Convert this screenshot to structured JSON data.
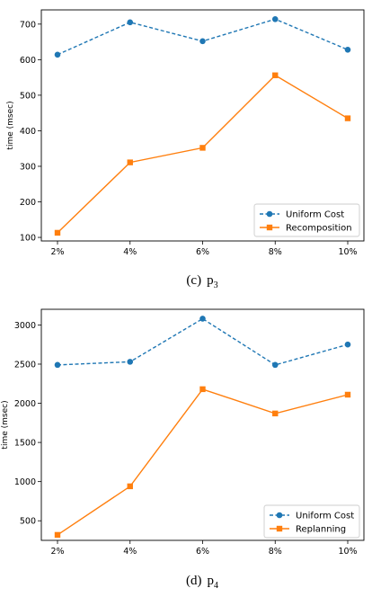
{
  "chart_data": [
    {
      "type": "line",
      "categories": [
        "2%",
        "4%",
        "6%",
        "8%",
        "10%"
      ],
      "ylabel": "time (msec)",
      "ylim": [
        90,
        740
      ],
      "yticks": [
        100,
        200,
        300,
        400,
        500,
        600,
        700
      ],
      "legend_position": "lower-right",
      "caption": {
        "letter": "(c)",
        "name": "p",
        "sub": "3"
      },
      "series": [
        {
          "name": "Uniform Cost",
          "values": [
            614,
            705,
            652,
            714,
            628
          ],
          "color": "#1f77b4",
          "style": "dashed",
          "marker": "circle"
        },
        {
          "name": "Recomposition",
          "values": [
            113,
            311,
            352,
            556,
            435
          ],
          "color": "#ff7f0e",
          "style": "solid",
          "marker": "square"
        }
      ]
    },
    {
      "type": "line",
      "categories": [
        "2%",
        "4%",
        "6%",
        "8%",
        "10%"
      ],
      "ylabel": "time (msec)",
      "ylim": [
        250,
        3200
      ],
      "yticks": [
        500,
        1000,
        1500,
        2000,
        2500,
        3000
      ],
      "legend_position": "lower-right",
      "caption": {
        "letter": "(d)",
        "name": "p",
        "sub": "4"
      },
      "series": [
        {
          "name": "Uniform Cost",
          "values": [
            2490,
            2530,
            3080,
            2490,
            2750
          ],
          "color": "#1f77b4",
          "style": "dashed",
          "marker": "circle"
        },
        {
          "name": "Replanning",
          "values": [
            320,
            940,
            2180,
            1870,
            2110
          ],
          "color": "#ff7f0e",
          "style": "solid",
          "marker": "square"
        }
      ]
    }
  ]
}
